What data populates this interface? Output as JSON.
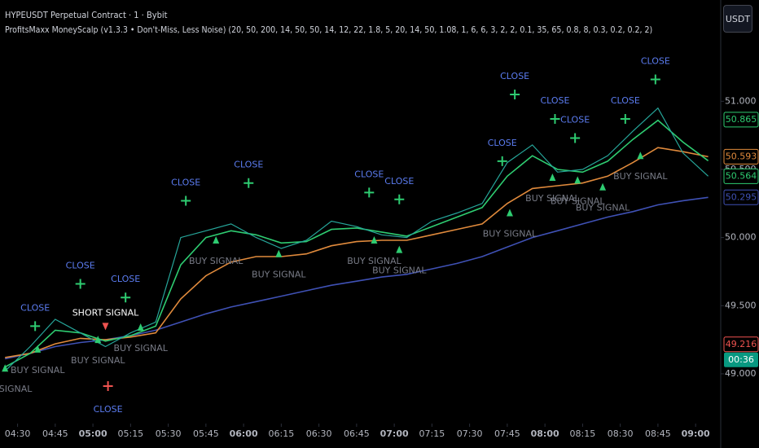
{
  "header": {
    "symbol": "HYPEUSDT Perpetual Contract · 1 · Bybit",
    "indicator": "ProfitsMaxx MoneyScalp (v1.3.3 • Don't-Miss, Less Noise) (20, 50, 200, 14, 50, 50, 14, 12, 22, 1.8, 5, 20, 14, 50, 1.08, 1, 6, 6, 3, 2, 2, 0.1, 35, 65, 0.8, 8, 0.3, 0.2, 0.2, 2)",
    "currency": "USDT"
  },
  "chart_data": {
    "type": "line",
    "x": [
      "04:25",
      "04:35",
      "04:45",
      "04:55",
      "05:05",
      "05:15",
      "05:25",
      "05:35",
      "05:45",
      "05:55",
      "06:05",
      "06:15",
      "06:25",
      "06:35",
      "06:45",
      "06:55",
      "07:05",
      "07:15",
      "07:25",
      "07:35",
      "07:45",
      "07:55",
      "08:05",
      "08:15",
      "08:25",
      "08:35",
      "08:45",
      "08:55",
      "09:05"
    ],
    "series": [
      {
        "color": "#26a69a",
        "values": [
          49.02,
          49.2,
          49.4,
          49.3,
          49.2,
          49.3,
          49.38,
          50.0,
          50.05,
          50.1,
          50.0,
          49.92,
          49.98,
          50.12,
          50.08,
          50.02,
          50.0,
          50.12,
          50.18,
          50.25,
          50.55,
          50.68,
          50.48,
          50.5,
          50.6,
          50.78,
          50.95,
          50.62,
          50.45
        ]
      },
      {
        "color": "#2ecc71",
        "values": [
          49.05,
          49.15,
          49.32,
          49.3,
          49.24,
          49.28,
          49.35,
          49.8,
          50.0,
          50.05,
          50.02,
          49.96,
          49.97,
          50.06,
          50.07,
          50.04,
          50.01,
          50.08,
          50.15,
          50.22,
          50.45,
          50.6,
          50.5,
          50.48,
          50.56,
          50.72,
          50.86,
          50.7,
          50.564
        ]
      },
      {
        "color": "#e08a3c",
        "values": [
          49.12,
          49.15,
          49.22,
          49.26,
          49.25,
          49.27,
          49.3,
          49.55,
          49.72,
          49.82,
          49.86,
          49.86,
          49.88,
          49.94,
          49.97,
          49.98,
          49.98,
          50.02,
          50.06,
          50.1,
          50.25,
          50.36,
          50.38,
          50.4,
          50.45,
          50.55,
          50.66,
          50.63,
          50.593
        ]
      },
      {
        "color": "#3f51b5",
        "values": [
          49.11,
          49.15,
          49.2,
          49.23,
          49.25,
          49.28,
          49.32,
          49.38,
          49.44,
          49.49,
          49.53,
          49.57,
          49.61,
          49.65,
          49.68,
          49.71,
          49.73,
          49.77,
          49.81,
          49.86,
          49.93,
          50.0,
          50.05,
          50.1,
          50.15,
          50.19,
          50.24,
          50.27,
          50.295
        ]
      }
    ],
    "xlim": [
      "04:23",
      "09:10"
    ],
    "xticks": [
      "04:30",
      "04:45",
      "05:00",
      "05:15",
      "05:30",
      "05:45",
      "06:00",
      "06:15",
      "06:30",
      "06:45",
      "07:00",
      "07:15",
      "07:30",
      "07:45",
      "08:00",
      "08:15",
      "08:30",
      "08:45",
      "09:00"
    ],
    "ylim": [
      48.635,
      51.743
    ],
    "yticks": [
      {
        "value": 49,
        "label": "49.000"
      },
      {
        "value": 49.5,
        "label": "49.500"
      },
      {
        "value": 50,
        "label": "50.000"
      },
      {
        "value": 50.5,
        "label": "50.500"
      },
      {
        "value": 51,
        "label": "51.000"
      }
    ],
    "price_labels": [
      {
        "value": 50.865,
        "label": "50.865",
        "color": "#2ecc71"
      },
      {
        "value": 50.593,
        "label": "50.593",
        "color": "#e08a3c"
      },
      {
        "value": 50.564,
        "label": "50.564",
        "color": "#2ecc71"
      },
      {
        "value": 50.295,
        "label": "50.295",
        "color": "#3f51b5"
      },
      {
        "value": 49.216,
        "label": "49.216",
        "color": "#ef5350"
      }
    ],
    "countdown": "00:36",
    "close_signals": [
      {
        "x": "04:37",
        "y": 49.35,
        "label": "CLOSE",
        "color": "#2ecc71"
      },
      {
        "x": "04:55",
        "y": 49.66,
        "label": "CLOSE",
        "color": "#2ecc71"
      },
      {
        "x": "05:13",
        "y": 49.56,
        "label": "CLOSE",
        "color": "#2ecc71"
      },
      {
        "x": "05:37",
        "y": 50.27,
        "label": "CLOSE",
        "color": "#2ecc71"
      },
      {
        "x": "06:02",
        "y": 50.4,
        "label": "CLOSE",
        "color": "#2ecc71"
      },
      {
        "x": "06:50",
        "y": 50.33,
        "label": "CLOSE",
        "color": "#2ecc71"
      },
      {
        "x": "07:02",
        "y": 50.28,
        "label": "CLOSE",
        "color": "#2ecc71"
      },
      {
        "x": "07:43",
        "y": 50.56,
        "label": "CLOSE",
        "color": "#2ecc71"
      },
      {
        "x": "07:48",
        "y": 51.05,
        "label": "CLOSE",
        "color": "#2ecc71"
      },
      {
        "x": "08:04",
        "y": 50.87,
        "label": "CLOSE",
        "color": "#2ecc71"
      },
      {
        "x": "08:12",
        "y": 50.73,
        "label": "CLOSE",
        "color": "#2ecc71"
      },
      {
        "x": "08:32",
        "y": 50.87,
        "label": "CLOSE",
        "color": "#2ecc71"
      },
      {
        "x": "08:44",
        "y": 51.16,
        "label": "CLOSE",
        "color": "#2ecc71"
      },
      {
        "x": "05:06",
        "y": 48.91,
        "label": "CLOSE",
        "color": "#ef5350"
      }
    ],
    "buy_signals": [
      {
        "x": "04:25",
        "y": 49.04,
        "label": "BUY SIGNAL"
      },
      {
        "x": "04:38",
        "y": 49.18,
        "label": "BUY SIGNAL"
      },
      {
        "x": "05:02",
        "y": 49.25,
        "label": "BUY SIGNAL"
      },
      {
        "x": "05:19",
        "y": 49.34,
        "label": "BUY SIGNAL"
      },
      {
        "x": "05:49",
        "y": 49.98,
        "label": "BUY SIGNAL"
      },
      {
        "x": "06:14",
        "y": 49.88,
        "label": "BUY SIGNAL"
      },
      {
        "x": "06:52",
        "y": 49.98,
        "label": "BUY SIGNAL"
      },
      {
        "x": "07:02",
        "y": 49.91,
        "label": "BUY SIGNAL"
      },
      {
        "x": "07:46",
        "y": 50.18,
        "label": "BUY SIGNAL"
      },
      {
        "x": "08:03",
        "y": 50.44,
        "label": "BUY SIGNAL"
      },
      {
        "x": "08:13",
        "y": 50.42,
        "label": "BUY SIGNAL"
      },
      {
        "x": "08:23",
        "y": 50.37,
        "label": "BUY SIGNAL"
      },
      {
        "x": "08:38",
        "y": 50.6,
        "label": "BUY SIGNAL"
      }
    ],
    "short_signals": [
      {
        "x": "05:05",
        "y": 49.35,
        "label": "SHORT SIGNAL"
      }
    ]
  }
}
